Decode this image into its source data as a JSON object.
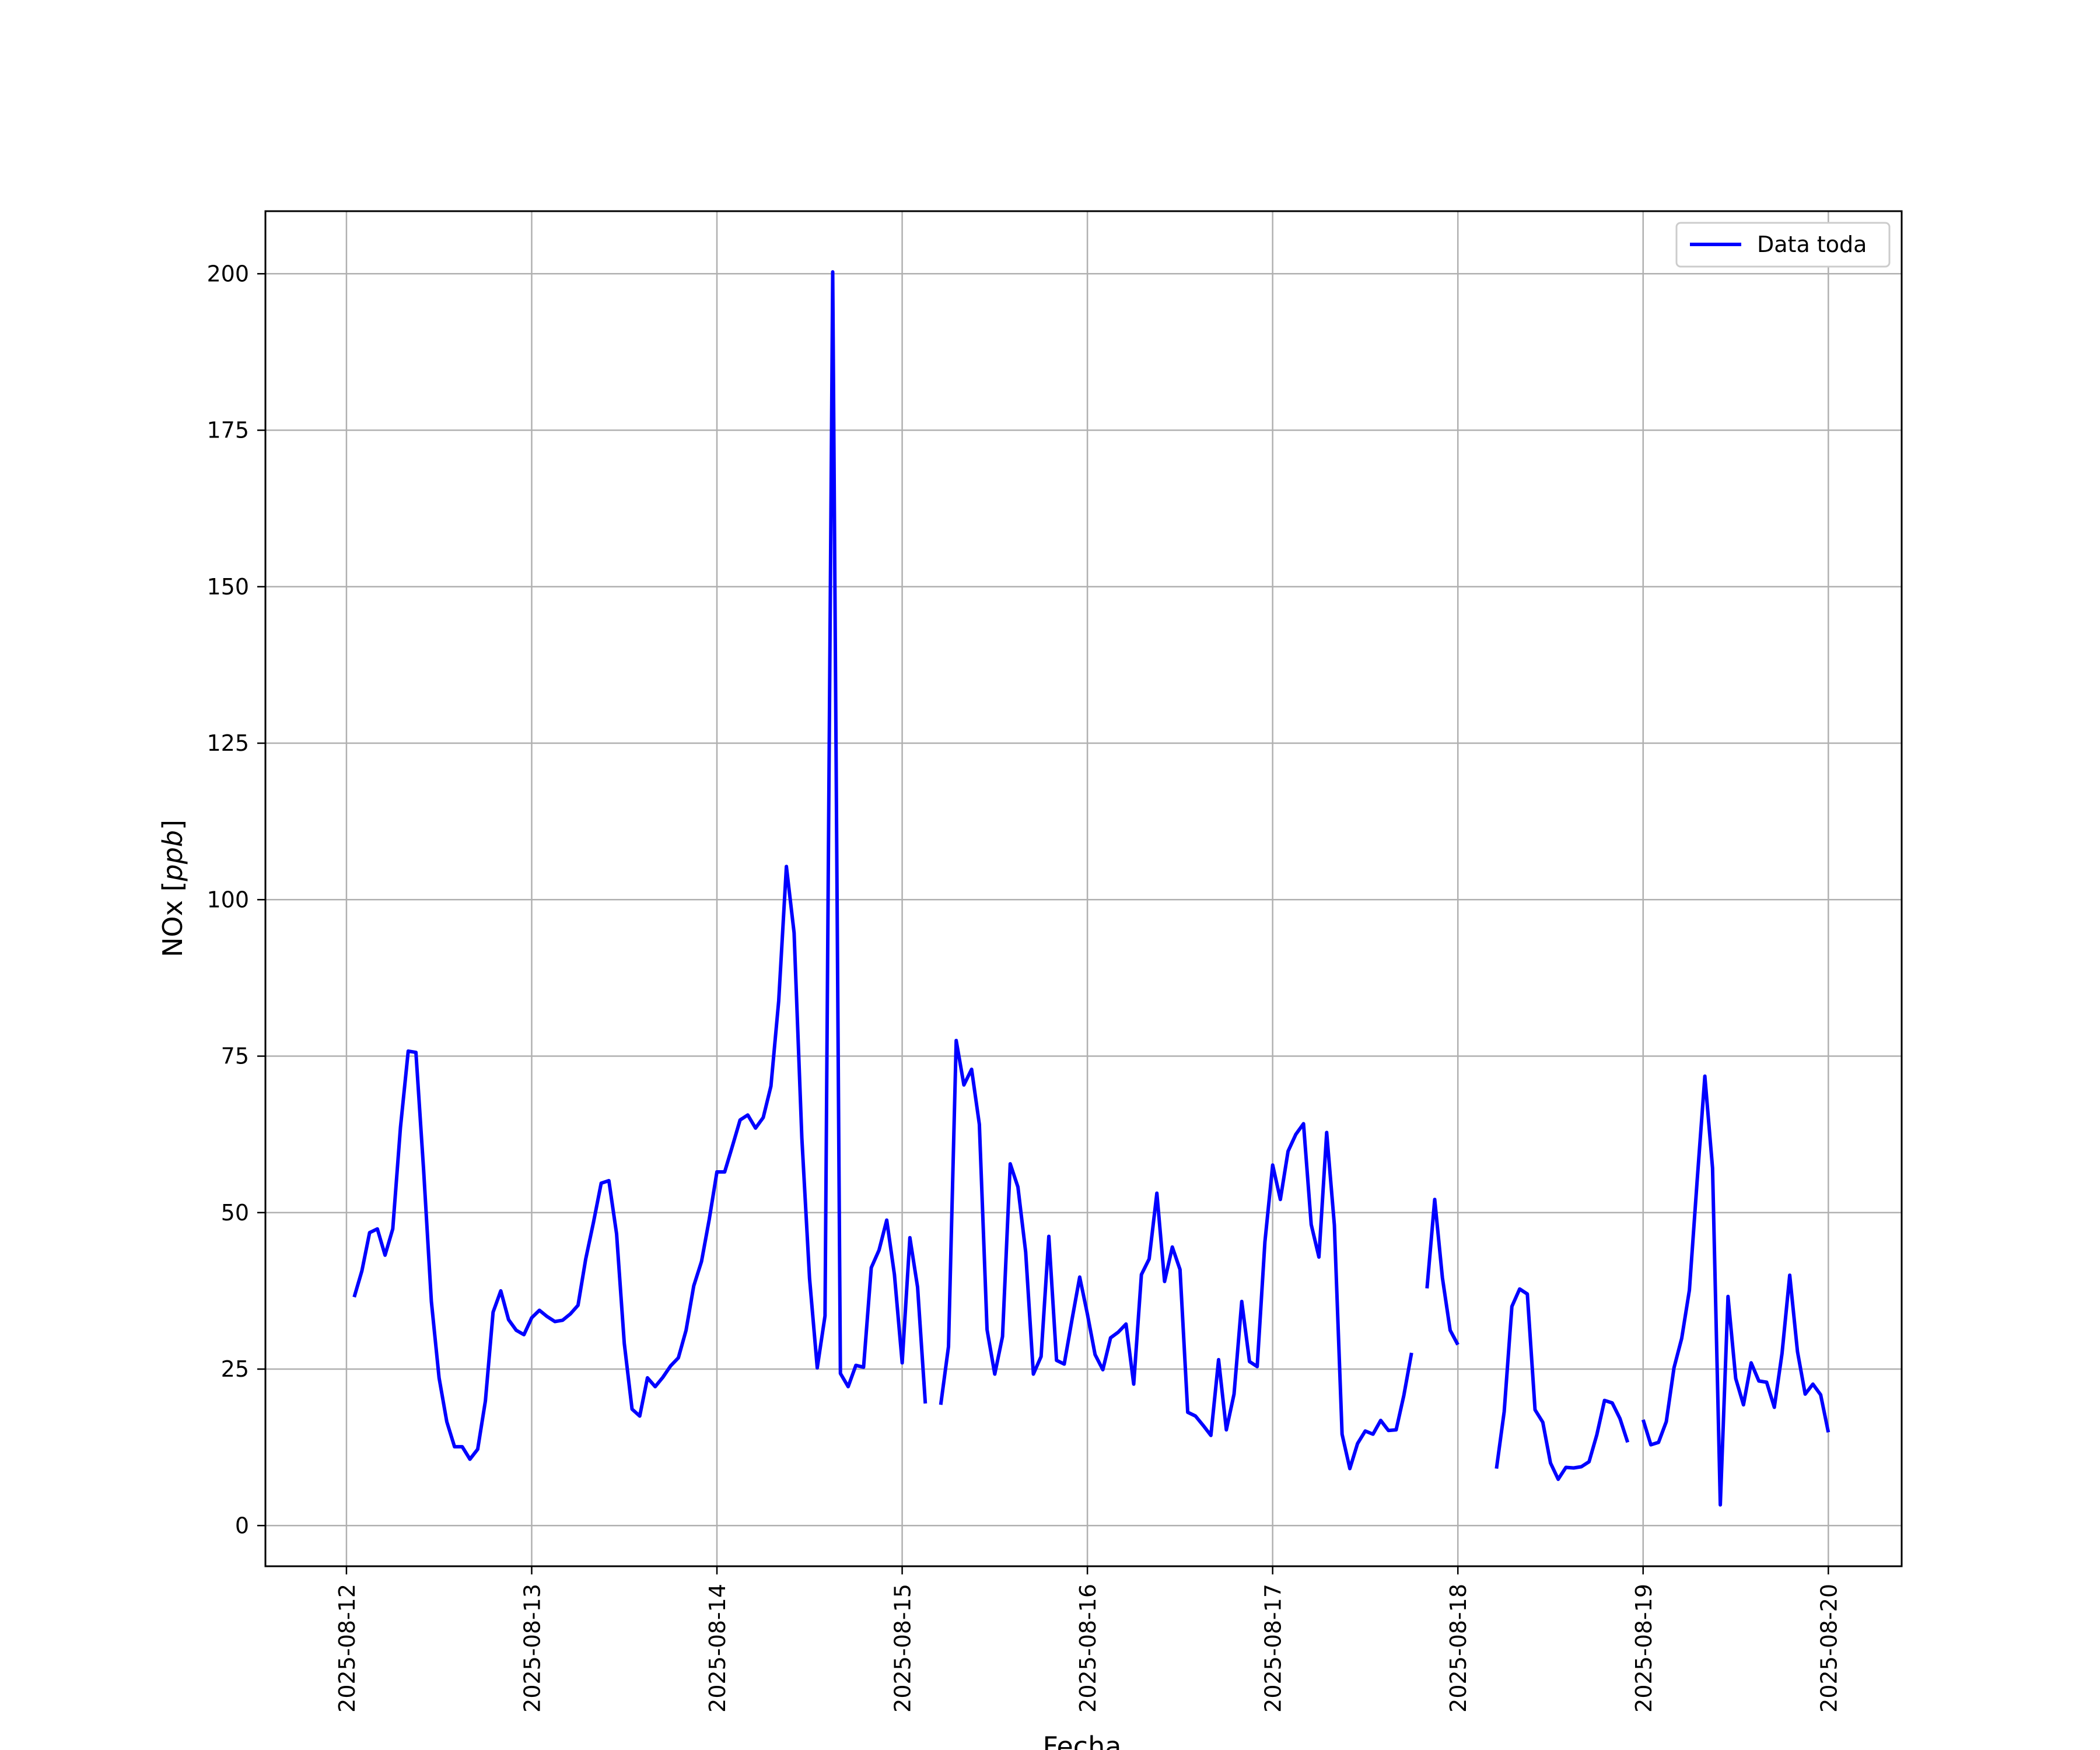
{
  "chart_data": {
    "type": "line",
    "title": "",
    "xlabel": "Fecha",
    "ylabel": "NOx [ppb]",
    "ylabel_main": "NOx ",
    "ylabel_unit": "ppb",
    "ylim": [
      -6.5,
      210
    ],
    "xlim": [
      "2025-08-11 13:30",
      "2025-08-20 09:30"
    ],
    "grid": true,
    "legend_position": "top-right",
    "yticks": [
      {
        "value": 0,
        "label": "0"
      },
      {
        "value": 25,
        "label": "25"
      },
      {
        "value": 50,
        "label": "50"
      },
      {
        "value": 75,
        "label": "75"
      },
      {
        "value": 100,
        "label": "100"
      },
      {
        "value": 125,
        "label": "125"
      },
      {
        "value": 150,
        "label": "150"
      },
      {
        "value": 175,
        "label": "175"
      },
      {
        "value": 200,
        "label": "200"
      }
    ],
    "xticks": [
      {
        "value": "2025-08-12",
        "label": "2025-08-12"
      },
      {
        "value": "2025-08-13",
        "label": "2025-08-13"
      },
      {
        "value": "2025-08-14",
        "label": "2025-08-14"
      },
      {
        "value": "2025-08-15",
        "label": "2025-08-15"
      },
      {
        "value": "2025-08-16",
        "label": "2025-08-16"
      },
      {
        "value": "2025-08-17",
        "label": "2025-08-17"
      },
      {
        "value": "2025-08-18",
        "label": "2025-08-18"
      },
      {
        "value": "2025-08-19",
        "label": "2025-08-19"
      },
      {
        "value": "2025-08-20",
        "label": "2025-08-20"
      }
    ],
    "series": [
      {
        "name": "Data toda",
        "color": "#0000ff",
        "segments": [
          [
            [
              "2025-08-12 01:00",
              36.5
            ],
            [
              "2025-08-12 02:00",
              40.7
            ],
            [
              "2025-08-12 03:00",
              46.8
            ],
            [
              "2025-08-12 04:00",
              47.4
            ],
            [
              "2025-08-12 05:00",
              43.2
            ],
            [
              "2025-08-12 06:00",
              47.4
            ],
            [
              "2025-08-12 07:00",
              63.6
            ],
            [
              "2025-08-12 08:00",
              75.8
            ],
            [
              "2025-08-12 09:00",
              75.6
            ],
            [
              "2025-08-12 10:00",
              56.8
            ],
            [
              "2025-08-12 11:00",
              35.8
            ],
            [
              "2025-08-12 12:00",
              23.6
            ],
            [
              "2025-08-12 13:00",
              16.6
            ],
            [
              "2025-08-12 14:00",
              12.6
            ],
            [
              "2025-08-12 15:00",
              12.6
            ],
            [
              "2025-08-12 16:00",
              10.6
            ],
            [
              "2025-08-12 17:00",
              12.2
            ],
            [
              "2025-08-12 18:00",
              19.9
            ],
            [
              "2025-08-12 19:00",
              34.1
            ],
            [
              "2025-08-12 20:00",
              37.5
            ],
            [
              "2025-08-12 21:00",
              32.9
            ],
            [
              "2025-08-12 22:00",
              31.2
            ],
            [
              "2025-08-12 23:00",
              30.5
            ],
            [
              "2025-08-13 00:00",
              33.2
            ],
            [
              "2025-08-13 01:00",
              34.4
            ],
            [
              "2025-08-13 02:00",
              33.4
            ],
            [
              "2025-08-13 03:00",
              32.6
            ],
            [
              "2025-08-13 04:00",
              32.8
            ],
            [
              "2025-08-13 05:00",
              33.8
            ],
            [
              "2025-08-13 06:00",
              35.2
            ],
            [
              "2025-08-13 07:00",
              42.6
            ],
            [
              "2025-08-13 08:00",
              48.4
            ],
            [
              "2025-08-13 09:00",
              54.7
            ],
            [
              "2025-08-13 10:00",
              55.1
            ],
            [
              "2025-08-13 11:00",
              46.6
            ],
            [
              "2025-08-13 12:00",
              29.1
            ],
            [
              "2025-08-13 13:00",
              18.6
            ],
            [
              "2025-08-13 14:00",
              17.5
            ],
            [
              "2025-08-13 15:00",
              23.6
            ],
            [
              "2025-08-13 16:00",
              22.2
            ],
            [
              "2025-08-13 17:00",
              23.7
            ],
            [
              "2025-08-13 18:00",
              25.5
            ],
            [
              "2025-08-13 19:00",
              26.8
            ],
            [
              "2025-08-13 20:00",
              31.2
            ],
            [
              "2025-08-13 21:00",
              38.3
            ],
            [
              "2025-08-13 22:00",
              42.2
            ],
            [
              "2025-08-13 23:00",
              48.9
            ],
            [
              "2025-08-14 00:00",
              56.5
            ],
            [
              "2025-08-14 01:00",
              56.5
            ],
            [
              "2025-08-14 02:00",
              60.6
            ],
            [
              "2025-08-14 03:00",
              64.8
            ],
            [
              "2025-08-14 04:00",
              65.6
            ],
            [
              "2025-08-14 05:00",
              63.5
            ],
            [
              "2025-08-14 06:00",
              65.2
            ],
            [
              "2025-08-14 07:00",
              70.2
            ],
            [
              "2025-08-14 08:00",
              83.8
            ],
            [
              "2025-08-14 09:00",
              105.3
            ],
            [
              "2025-08-14 10:00",
              94.7
            ],
            [
              "2025-08-14 11:00",
              61.9
            ],
            [
              "2025-08-14 12:00",
              39.5
            ],
            [
              "2025-08-14 13:00",
              25.2
            ],
            [
              "2025-08-14 14:00",
              33.5
            ],
            [
              "2025-08-14 15:00",
              200.3
            ],
            [
              "2025-08-14 16:00",
              24.3
            ],
            [
              "2025-08-14 17:00",
              22.2
            ],
            [
              "2025-08-14 18:00",
              25.6
            ],
            [
              "2025-08-14 19:00",
              25.3
            ],
            [
              "2025-08-14 20:00",
              41.2
            ],
            [
              "2025-08-14 21:00",
              44.0
            ],
            [
              "2025-08-14 22:00",
              48.8
            ],
            [
              "2025-08-14 23:00",
              40.1
            ],
            [
              "2025-08-15 00:00",
              26.0
            ],
            [
              "2025-08-15 01:00",
              46.0
            ],
            [
              "2025-08-15 02:00",
              38.1
            ],
            [
              "2025-08-15 03:00",
              19.5
            ]
          ],
          [
            [
              "2025-08-15 05:00",
              19.3
            ],
            [
              "2025-08-15 06:00",
              28.6
            ],
            [
              "2025-08-15 07:00",
              77.5
            ],
            [
              "2025-08-15 08:00",
              70.4
            ],
            [
              "2025-08-15 09:00",
              72.9
            ],
            [
              "2025-08-15 10:00",
              64.1
            ],
            [
              "2025-08-15 11:00",
              31.3
            ],
            [
              "2025-08-15 12:00",
              24.2
            ],
            [
              "2025-08-15 13:00",
              30.2
            ],
            [
              "2025-08-15 14:00",
              57.8
            ],
            [
              "2025-08-15 15:00",
              54.1
            ],
            [
              "2025-08-15 16:00",
              43.7
            ],
            [
              "2025-08-15 17:00",
              24.2
            ],
            [
              "2025-08-15 18:00",
              27.0
            ],
            [
              "2025-08-15 19:00",
              46.2
            ],
            [
              "2025-08-15 20:00",
              26.4
            ],
            [
              "2025-08-15 21:00",
              25.8
            ],
            [
              "2025-08-15 22:00",
              32.9
            ],
            [
              "2025-08-15 23:00",
              39.7
            ],
            [
              "2025-08-16 00:00",
              33.8
            ],
            [
              "2025-08-16 01:00",
              27.3
            ],
            [
              "2025-08-16 02:00",
              24.9
            ],
            [
              "2025-08-16 03:00",
              30.0
            ],
            [
              "2025-08-16 04:00",
              30.9
            ],
            [
              "2025-08-16 05:00",
              32.2
            ],
            [
              "2025-08-16 06:00",
              22.6
            ],
            [
              "2025-08-16 07:00",
              40.1
            ],
            [
              "2025-08-16 08:00",
              42.6
            ],
            [
              "2025-08-16 09:00",
              53.1
            ],
            [
              "2025-08-16 10:00",
              39.0
            ],
            [
              "2025-08-16 11:00",
              44.5
            ],
            [
              "2025-08-16 12:00",
              40.9
            ],
            [
              "2025-08-16 13:00",
              18.1
            ],
            [
              "2025-08-16 14:00",
              17.5
            ],
            [
              "2025-08-16 15:00",
              16.0
            ],
            [
              "2025-08-16 16:00",
              14.4
            ],
            [
              "2025-08-16 17:00",
              26.5
            ],
            [
              "2025-08-16 18:00",
              15.3
            ],
            [
              "2025-08-16 19:00",
              21.0
            ],
            [
              "2025-08-16 20:00",
              35.8
            ],
            [
              "2025-08-16 21:00",
              26.2
            ],
            [
              "2025-08-16 22:00",
              25.4
            ],
            [
              "2025-08-16 23:00",
              45.3
            ],
            [
              "2025-08-17 00:00",
              57.6
            ],
            [
              "2025-08-17 01:00",
              52.1
            ],
            [
              "2025-08-17 02:00",
              59.8
            ],
            [
              "2025-08-17 03:00",
              62.5
            ],
            [
              "2025-08-17 04:00",
              64.2
            ],
            [
              "2025-08-17 05:00",
              48.1
            ],
            [
              "2025-08-17 06:00",
              42.9
            ],
            [
              "2025-08-17 07:00",
              62.8
            ],
            [
              "2025-08-17 08:00",
              48.0
            ],
            [
              "2025-08-17 09:00",
              14.6
            ],
            [
              "2025-08-17 10:00",
              9.1
            ],
            [
              "2025-08-17 11:00",
              13.1
            ],
            [
              "2025-08-17 12:00",
              15.1
            ],
            [
              "2025-08-17 13:00",
              14.6
            ],
            [
              "2025-08-17 14:00",
              16.8
            ],
            [
              "2025-08-17 15:00",
              15.2
            ],
            [
              "2025-08-17 16:00",
              15.3
            ],
            [
              "2025-08-17 17:00",
              20.8
            ],
            [
              "2025-08-17 18:00",
              27.6
            ]
          ],
          [
            [
              "2025-08-17 20:00",
              37.9
            ],
            [
              "2025-08-17 21:00",
              52.1
            ],
            [
              "2025-08-17 22:00",
              39.6
            ],
            [
              "2025-08-17 23:00",
              31.2
            ],
            [
              "2025-08-18 00:00",
              28.9
            ]
          ],
          [
            [
              "2025-08-18 05:00",
              9.1
            ],
            [
              "2025-08-18 06:00",
              18.2
            ],
            [
              "2025-08-18 07:00",
              35.0
            ],
            [
              "2025-08-18 08:00",
              37.8
            ],
            [
              "2025-08-18 09:00",
              37.0
            ],
            [
              "2025-08-18 10:00",
              18.5
            ],
            [
              "2025-08-18 11:00",
              16.5
            ],
            [
              "2025-08-18 12:00",
              10.0
            ],
            [
              "2025-08-18 13:00",
              7.4
            ],
            [
              "2025-08-18 14:00",
              9.3
            ],
            [
              "2025-08-18 15:00",
              9.2
            ],
            [
              "2025-08-18 16:00",
              9.4
            ],
            [
              "2025-08-18 17:00",
              10.2
            ],
            [
              "2025-08-18 18:00",
              14.5
            ],
            [
              "2025-08-18 19:00",
              20.0
            ],
            [
              "2025-08-18 20:00",
              19.6
            ],
            [
              "2025-08-18 21:00",
              17.1
            ],
            [
              "2025-08-18 22:00",
              13.3
            ]
          ],
          [
            [
              "2025-08-19 00:00",
              16.9
            ],
            [
              "2025-08-19 01:00",
              12.9
            ],
            [
              "2025-08-19 02:00",
              13.3
            ],
            [
              "2025-08-19 03:00",
              16.6
            ],
            [
              "2025-08-19 04:00",
              25.2
            ],
            [
              "2025-08-19 05:00",
              29.9
            ],
            [
              "2025-08-19 06:00",
              37.6
            ],
            [
              "2025-08-19 07:00",
              55.1
            ],
            [
              "2025-08-19 08:00",
              71.8
            ],
            [
              "2025-08-19 09:00",
              57.1
            ],
            [
              "2025-08-19 10:00",
              3.3
            ],
            [
              "2025-08-19 11:00",
              36.6
            ],
            [
              "2025-08-19 12:00",
              23.5
            ],
            [
              "2025-08-19 13:00",
              19.3
            ],
            [
              "2025-08-19 14:00",
              26.0
            ],
            [
              "2025-08-19 15:00",
              23.1
            ],
            [
              "2025-08-19 16:00",
              22.9
            ],
            [
              "2025-08-19 17:00",
              18.9
            ],
            [
              "2025-08-19 18:00",
              27.5
            ],
            [
              "2025-08-19 19:00",
              40.0
            ],
            [
              "2025-08-19 20:00",
              27.8
            ],
            [
              "2025-08-19 21:00",
              21.0
            ],
            [
              "2025-08-19 22:00",
              22.6
            ],
            [
              "2025-08-19 23:00",
              20.9
            ],
            [
              "2025-08-20 00:00",
              14.9
            ]
          ]
        ]
      }
    ]
  }
}
